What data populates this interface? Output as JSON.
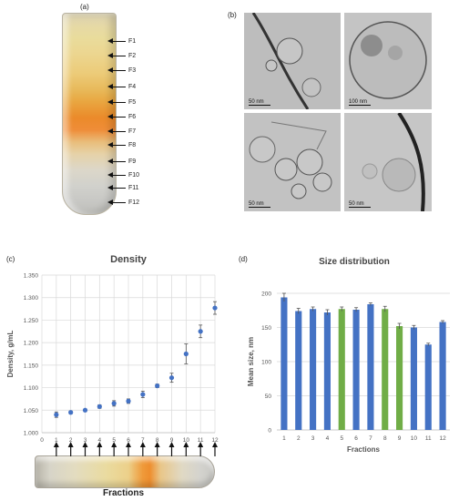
{
  "panels": {
    "a": {
      "label": "(a)"
    },
    "b": {
      "label": "(b)"
    },
    "c": {
      "label": "(c)"
    },
    "d": {
      "label": "(d)"
    }
  },
  "fractions_tube": {
    "labels": [
      "F1",
      "F2",
      "F3",
      "F4",
      "F5",
      "F6",
      "F7",
      "F8",
      "F9",
      "F10",
      "F11",
      "F12"
    ]
  },
  "em_images": {
    "scale_labels": [
      "50 nm",
      "100 nm",
      "50 nm",
      "50 nm"
    ]
  },
  "density_tube_label": "Fractions",
  "chart_data": [
    {
      "type": "scatter",
      "title": "Density",
      "xlabel": "",
      "ylabel": "Density, g/mL",
      "x": [
        1,
        2,
        3,
        4,
        5,
        6,
        7,
        8,
        9,
        10,
        11,
        12
      ],
      "y": [
        1.04,
        1.045,
        1.05,
        1.058,
        1.065,
        1.07,
        1.085,
        1.104,
        1.122,
        1.175,
        1.225,
        1.277
      ],
      "errors": [
        0.006,
        0.003,
        0.003,
        0.004,
        0.006,
        0.005,
        0.007,
        0.004,
        0.01,
        0.022,
        0.014,
        0.014
      ],
      "xlim": [
        0,
        12
      ],
      "ylim": [
        1.0,
        1.35
      ],
      "xticks": [
        "0",
        "1",
        "2",
        "3",
        "4",
        "5",
        "6",
        "7",
        "8",
        "9",
        "10",
        "11",
        "12"
      ],
      "yticks": [
        "1.000",
        "1.050",
        "1.100",
        "1.150",
        "1.200",
        "1.250",
        "1.300",
        "1.350"
      ],
      "grid": true,
      "color": "#4472c4"
    },
    {
      "type": "bar",
      "title": "Size distribution",
      "xlabel": "Fractions",
      "ylabel": "Mean size, nm",
      "categories": [
        "1",
        "2",
        "3",
        "4",
        "5",
        "6",
        "7",
        "8",
        "9",
        "10",
        "11",
        "12"
      ],
      "values": [
        194,
        174,
        177,
        172,
        177,
        176,
        184,
        177,
        152,
        150,
        125,
        158
      ],
      "errors": [
        6,
        4,
        3,
        4,
        3,
        3,
        2,
        4,
        4,
        3,
        2,
        2
      ],
      "bar_colors": [
        "#4472c4",
        "#4472c4",
        "#4472c4",
        "#4472c4",
        "#70ad47",
        "#4472c4",
        "#4472c4",
        "#70ad47",
        "#70ad47",
        "#4472c4",
        "#4472c4",
        "#4472c4"
      ],
      "ylim": [
        0,
        200
      ],
      "yticks": [
        "0",
        "50",
        "100",
        "150",
        "200"
      ],
      "grid": true
    }
  ]
}
